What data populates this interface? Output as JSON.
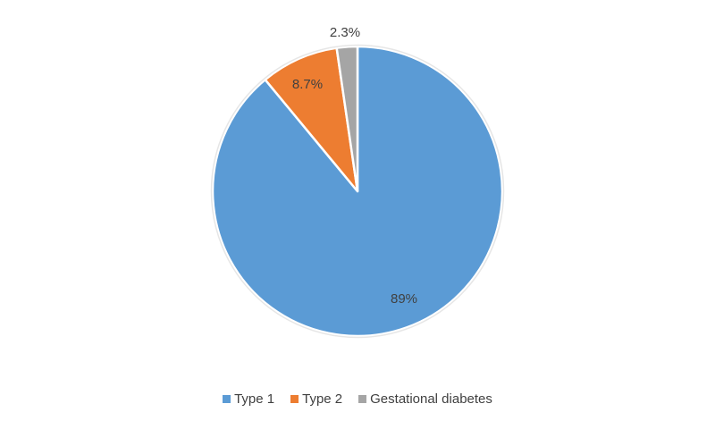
{
  "chart_data": {
    "type": "pie",
    "categories": [
      "Type 1",
      "Type 2",
      "Gestational diabetes"
    ],
    "values": [
      89,
      8.7,
      2.3
    ],
    "data_labels": [
      "89%",
      "8.7%",
      "2.3%"
    ],
    "colors": [
      "#5B9BD5",
      "#ED7D31",
      "#A5A5A5"
    ],
    "start_angle_deg": 0,
    "direction": "clockwise",
    "legend_position": "bottom"
  },
  "legend": {
    "items": [
      {
        "label": "Type 1",
        "color": "#5B9BD5"
      },
      {
        "label": "Type 2",
        "color": "#ED7D31"
      },
      {
        "label": "Gestational diabetes",
        "color": "#A5A5A5"
      }
    ]
  }
}
